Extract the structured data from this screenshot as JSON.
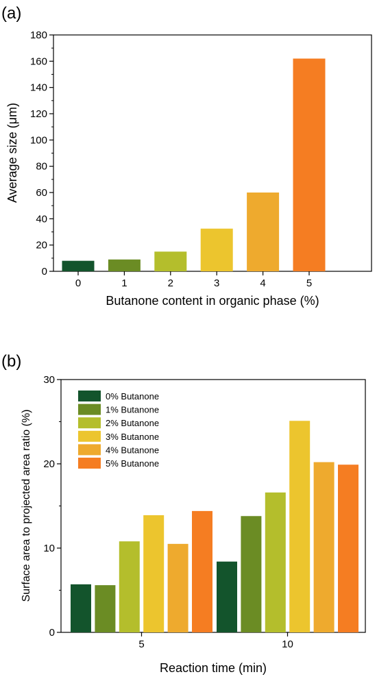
{
  "chart_data": [
    {
      "type": "bar",
      "panel_label": "(a)",
      "categories": [
        "0",
        "1",
        "2",
        "3",
        "4",
        "5"
      ],
      "values": [
        8,
        9,
        15,
        32.5,
        60,
        162
      ],
      "colors": [
        "#13542c",
        "#6b8c24",
        "#b4be2c",
        "#ecc52e",
        "#eeaa2e",
        "#f57d22"
      ],
      "xlabel": "Butanone content in organic phase (%)",
      "ylabel": "Average size (μm)",
      "ylim": [
        0,
        180
      ],
      "yticks": [
        "0",
        "20",
        "40",
        "60",
        "80",
        "100",
        "120",
        "140",
        "160",
        "180"
      ],
      "grid": false
    },
    {
      "type": "bar",
      "panel_label": "(b)",
      "categories": [
        "5",
        "10"
      ],
      "series": [
        {
          "name": "0% Butanone",
          "values": [
            5.7,
            8.4
          ],
          "color": "#13542c"
        },
        {
          "name": "1% Butanone",
          "values": [
            5.6,
            13.8
          ],
          "color": "#6b8c24"
        },
        {
          "name": "2% Butanone",
          "values": [
            10.8,
            16.6
          ],
          "color": "#b4be2c"
        },
        {
          "name": "3% Butanone",
          "values": [
            13.9,
            25.1
          ],
          "color": "#ecc52e"
        },
        {
          "name": "4% Butanone",
          "values": [
            10.5,
            20.2
          ],
          "color": "#eeaa2e"
        },
        {
          "name": "5% Butanone",
          "values": [
            14.4,
            19.9
          ],
          "color": "#f57d22"
        }
      ],
      "xlabel": "Reaction time (min)",
      "ylabel": "Surface area to projected area ratio (%)",
      "ylim": [
        0,
        30
      ],
      "yticks": [
        "0",
        "10",
        "20",
        "30"
      ],
      "legend_position": "top-left",
      "grid": false
    }
  ]
}
